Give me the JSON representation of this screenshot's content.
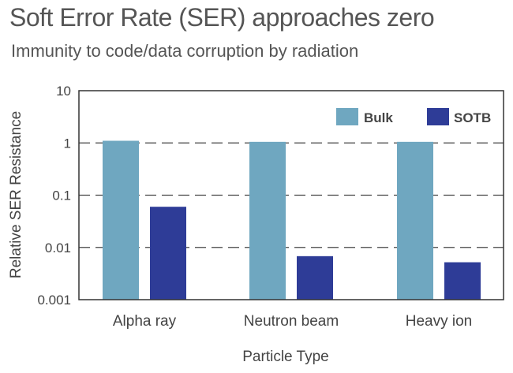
{
  "title": "Soft Error Rate (SER) approaches zero",
  "subtitle": "Immunity to code/data corruption by radiation",
  "colors": {
    "bulk": "#6fa7c0",
    "sotb": "#2e3c97",
    "grid": "#444444",
    "frame": "#333333"
  },
  "chart_data": {
    "type": "bar",
    "yscale": "log",
    "ylim": [
      0.001,
      10
    ],
    "yticks": [
      "10",
      "1",
      "0.1",
      "0.01",
      "0.001"
    ],
    "ytick_values": [
      10,
      1,
      0.1,
      0.01,
      0.001
    ],
    "categories": [
      "Alpha ray",
      "Neutron beam",
      "Heavy ion"
    ],
    "series": [
      {
        "name": "Bulk",
        "values": [
          1.1,
          1.05,
          1.05
        ]
      },
      {
        "name": "SOTB",
        "values": [
          0.06,
          0.0068,
          0.0052
        ]
      }
    ],
    "xlabel": "Particle Type",
    "ylabel": "Relative SER Resistance",
    "grid": "dashed horizontal",
    "legend": "top-right"
  }
}
